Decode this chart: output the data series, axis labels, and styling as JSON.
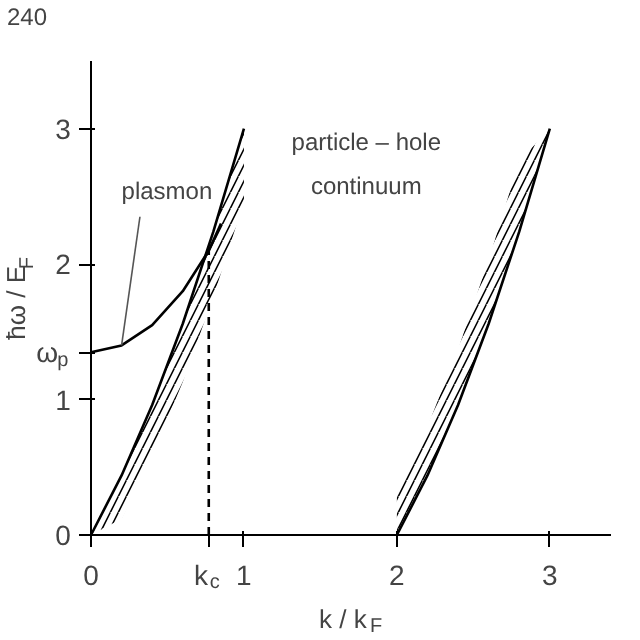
{
  "chart_data": {
    "type": "line",
    "xlabel": "k / k$_{F}$",
    "ylabel": "ħω / E$_{F}$",
    "xlim": [
      0,
      3.4
    ],
    "ylim": [
      0,
      3.5
    ],
    "xticks": [
      0,
      {
        "value": 0.77,
        "label": "k$_{c}$"
      },
      1,
      2,
      3
    ],
    "yticks": [
      0,
      1,
      {
        "value": 1.35,
        "label": "ω$_{p}$"
      },
      2,
      3
    ],
    "grid": false,
    "marker": "none",
    "series": [
      {
        "color": "#000000",
        "x": [
          0,
          0.2,
          0.4,
          0.6,
          0.8,
          1.0
        ],
        "values": [
          0,
          0.44,
          0.96,
          1.56,
          2.24,
          3.0
        ],
        "lower": [
          0,
          0.12,
          0.59,
          1.13,
          1.76,
          2.46
        ],
        "upper": [
          0,
          0.44,
          0.96,
          1.56,
          2.24,
          3.0
        ]
      },
      {
        "color": "#000000",
        "x": [
          2,
          2.2,
          2.4,
          2.6,
          2.8,
          3.0
        ],
        "values": [
          0,
          0.44,
          0.96,
          1.56,
          2.24,
          3.0
        ],
        "lower": [
          0,
          0.44,
          0.96,
          1.56,
          2.24,
          3.0
        ],
        "upper": [
          0.3,
          0.8,
          1.37,
          2.03,
          2.76,
          3.0
        ]
      },
      {
        "color": "#000000",
        "x": [
          0,
          0.2,
          0.4,
          0.6,
          0.77,
          0.85
        ],
        "values": [
          1.35,
          1.4,
          1.55,
          1.8,
          2.1,
          2.3
        ]
      },
      {
        "color": "#000000",
        "x": [
          0.77,
          0.77
        ],
        "values": [
          0,
          2.1
        ],
        "line_style": "dashed"
      }
    ],
    "annotations": [
      "240",
      {
        "text": "plasmon",
        "x": 0.2,
        "y": 1.4
      },
      "particle – hole\ncontinuum"
    ]
  }
}
